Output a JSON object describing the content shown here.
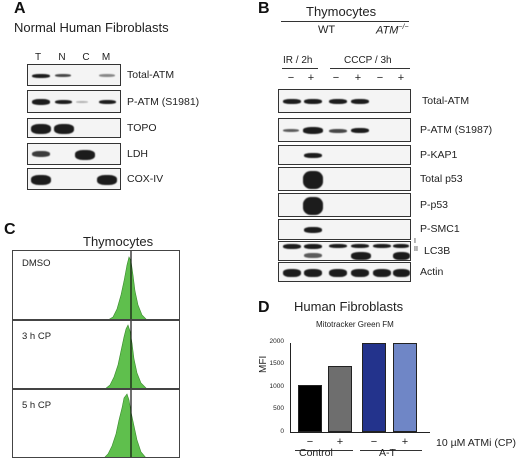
{
  "panels": {
    "a": {
      "letter": "A",
      "title": "Normal Human Fibroblasts",
      "lanes": [
        "T",
        "N",
        "C",
        "M"
      ],
      "rows": [
        "Total-ATM",
        "P-ATM (S1981)",
        "TOPO",
        "LDH",
        "COX-IV"
      ]
    },
    "b": {
      "letter": "B",
      "title": "Thymocytes",
      "wt": "WT",
      "atm": "ATM",
      "atm_sup": "−/−",
      "ir": "IR / 2h",
      "cccp": "CCCP / 3h",
      "signs": [
        "−",
        "+",
        "−",
        "+",
        "−",
        "+"
      ],
      "rows": [
        "Total-ATM",
        "P-ATM (S1987)",
        "P-KAP1",
        "Total p53",
        "P-p53",
        "P-SMC1",
        "LC3B",
        "Actin"
      ],
      "lc3_marks": [
        "I",
        "II"
      ]
    },
    "c": {
      "letter": "C",
      "title": "Thymocytes",
      "conditions": [
        "DMSO",
        "3 h CP",
        "5 h CP"
      ]
    },
    "d": {
      "letter": "D",
      "title": "Human Fibroblasts",
      "chart_title": "Mitotracker Green FM",
      "ylabel": "MFI",
      "ticks": [
        "2000",
        "1500",
        "1000",
        "500",
        "0"
      ],
      "signs": [
        "−",
        "+",
        "−",
        "+"
      ],
      "groups": [
        "Control",
        "A-T"
      ],
      "treatment": "10 µM ATMi (CP)"
    }
  },
  "chart_data": {
    "type": "bar",
    "title": "Mitotracker Green FM",
    "xlabel": "10 µM ATMi (CP)",
    "ylabel": "MFI",
    "ylim": [
      0,
      2000
    ],
    "categories": [
      "Control −",
      "Control +",
      "A-T −",
      "A-T +"
    ],
    "values": [
      1050,
      1480,
      2010,
      2000
    ],
    "colors": [
      "#000000",
      "#6e6e6e",
      "#23338c",
      "#6f86c6"
    ]
  }
}
